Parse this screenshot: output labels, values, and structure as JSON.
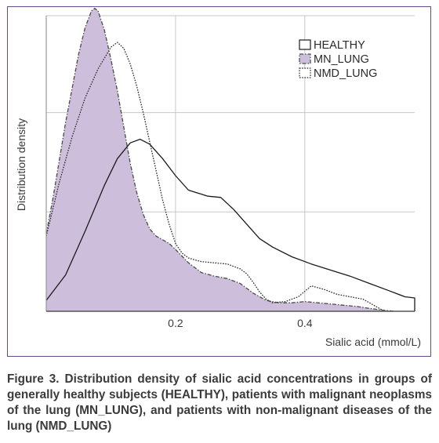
{
  "chart_data": {
    "type": "area",
    "xlabel": "Sialic acid (mmol/L)",
    "ylabel": "Distribution density",
    "xlim": [
      0,
      0.57
    ],
    "ylim": [
      0,
      12.2
    ],
    "xticks": [
      {
        "value": 0.2,
        "label": "0.2"
      },
      {
        "value": 0.4,
        "label": "0.4"
      }
    ],
    "grid": {
      "vertical": true,
      "horizontal": true,
      "y_gridlines": [
        4.1,
        8.2,
        12.2
      ]
    },
    "legend_position": "top-right",
    "series": [
      {
        "name": "HEALTHY",
        "style": "solid",
        "fill": "none",
        "line_color": "#1a1a1a",
        "x": [
          0.0,
          0.03,
          0.06,
          0.09,
          0.11,
          0.13,
          0.145,
          0.16,
          0.18,
          0.2,
          0.22,
          0.25,
          0.27,
          0.29,
          0.31,
          0.33,
          0.35,
          0.38,
          0.41,
          0.44,
          0.47,
          0.5,
          0.53,
          0.555,
          0.57,
          0.57
        ],
        "y": [
          0.45,
          1.5,
          3.3,
          5.2,
          6.3,
          6.95,
          7.1,
          6.9,
          6.3,
          5.6,
          5.0,
          4.75,
          4.7,
          4.2,
          3.6,
          3.0,
          2.65,
          2.25,
          1.95,
          1.7,
          1.45,
          1.15,
          0.85,
          0.6,
          0.55,
          0.0
        ]
      },
      {
        "name": "MN_LUNG",
        "style": "dash-dot",
        "fill": "#cdbfdc",
        "line_color": "#4a4a4a",
        "x": [
          0.0,
          0.01,
          0.02,
          0.03,
          0.04,
          0.05,
          0.06,
          0.07,
          0.075,
          0.08,
          0.09,
          0.1,
          0.11,
          0.12,
          0.13,
          0.14,
          0.15,
          0.16,
          0.17,
          0.18,
          0.19,
          0.2,
          0.22,
          0.24,
          0.26,
          0.28,
          0.3,
          0.32,
          0.34,
          0.36,
          0.38,
          0.4,
          0.42,
          0.44,
          0.46,
          0.48,
          0.5,
          0.52,
          0.54
        ],
        "y": [
          3.2,
          4.6,
          6.2,
          7.8,
          9.2,
          10.6,
          11.7,
          12.4,
          12.5,
          12.4,
          11.6,
          10.4,
          9.1,
          7.6,
          6.1,
          4.9,
          4.0,
          3.4,
          3.1,
          2.95,
          2.8,
          2.55,
          2.0,
          1.6,
          1.45,
          1.35,
          1.15,
          0.75,
          0.45,
          0.35,
          0.35,
          0.4,
          0.35,
          0.3,
          0.25,
          0.2,
          0.12,
          0.05,
          0.0
        ]
      },
      {
        "name": "NMD_LUNG",
        "style": "dotted",
        "fill": "none",
        "line_color": "#2a2a2a",
        "x": [
          0.0,
          0.02,
          0.04,
          0.06,
          0.08,
          0.1,
          0.11,
          0.12,
          0.13,
          0.14,
          0.15,
          0.16,
          0.17,
          0.18,
          0.19,
          0.2,
          0.21,
          0.22,
          0.23,
          0.24,
          0.26,
          0.28,
          0.3,
          0.31,
          0.32,
          0.33,
          0.34,
          0.35,
          0.37,
          0.39,
          0.41,
          0.43,
          0.45,
          0.47,
          0.49,
          0.5,
          0.52
        ],
        "y": [
          3.1,
          5.3,
          7.2,
          8.8,
          10.0,
          10.9,
          11.1,
          10.85,
          10.2,
          9.3,
          8.2,
          7.0,
          5.8,
          4.6,
          3.6,
          2.8,
          2.4,
          2.2,
          2.12,
          2.05,
          2.0,
          1.95,
          1.75,
          1.55,
          1.2,
          0.8,
          0.5,
          0.35,
          0.4,
          0.6,
          1.05,
          0.9,
          0.7,
          0.6,
          0.5,
          0.35,
          0.05
        ]
      }
    ]
  },
  "caption": "Figure 3. Distribution density of sialic acid concentrations in groups of generally healthy subjects (HEALTHY), patients with malignant neoplasms of the lung (MN_LUNG), and patients with non-malignant diseases of the lung (NMD_LUNG)",
  "colors": {
    "frame": "#6a4a8c",
    "grid": "#c7c7c7",
    "axis": "#9a9a9a",
    "mn_fill": "#cdbfdc"
  }
}
